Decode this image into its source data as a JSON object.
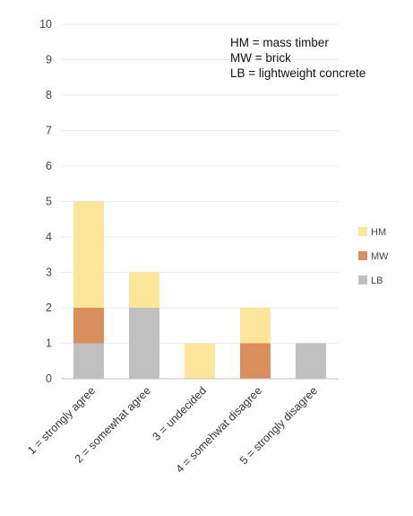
{
  "chart_data": {
    "type": "bar",
    "stacked": true,
    "categories": [
      "1 = strongly agree",
      "2 = somewhat agree",
      "3 = undecided",
      "4 = somehwat disagree",
      "5 = strongly disagree"
    ],
    "series": [
      {
        "name": "LB",
        "values": [
          1,
          2,
          0,
          0,
          1
        ],
        "color": "#c0c0c0"
      },
      {
        "name": "MW",
        "values": [
          1,
          0,
          0,
          1,
          0
        ],
        "color": "#d98f5c"
      },
      {
        "name": "HM",
        "values": [
          3,
          1,
          1,
          1,
          0
        ],
        "color": "#fde59a"
      }
    ],
    "legend_order": [
      "HM",
      "MW",
      "LB"
    ],
    "legend_position": "right",
    "ylim": [
      0,
      10
    ],
    "yticks": [
      0,
      1,
      2,
      3,
      4,
      5,
      6,
      7,
      8,
      9,
      10
    ],
    "grid": true,
    "annotation": [
      "HM  = mass timber",
      "MW = brick",
      "LB   = lightweight concrete"
    ]
  }
}
